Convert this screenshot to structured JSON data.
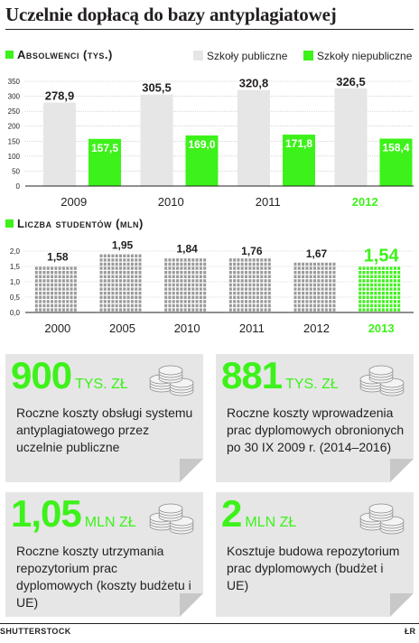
{
  "page": {
    "title": "Uczelnie dopłacą do bazy antyplagiatowej",
    "credit_left": "SHUTTERSTOCK",
    "credit_right": "ŁR"
  },
  "colors": {
    "green": "#3df21a",
    "grey": "#e6e6e6",
    "text": "#231f20"
  },
  "chart_data": [
    {
      "type": "bar",
      "title": "Absolwenci (tys.)",
      "categories": [
        "2009",
        "2010",
        "2011",
        "2012"
      ],
      "highlight_category": "2012",
      "ylim": [
        0,
        350
      ],
      "yticks": [
        0,
        50,
        100,
        150,
        200,
        250,
        300,
        350
      ],
      "grid": true,
      "legend_position": "top-right",
      "series": [
        {
          "name": "Szkoły publiczne",
          "color": "#e6e6e6",
          "values": [
            278.9,
            305.5,
            320.8,
            326.5
          ],
          "labels": [
            "278,9",
            "305,5",
            "320,8",
            "326,5"
          ]
        },
        {
          "name": "Szkoły niepubliczne",
          "color": "#3df21a",
          "values": [
            157.5,
            169.0,
            171.8,
            158.4
          ],
          "labels": [
            "157,5",
            "169,0",
            "171,8",
            "158,4"
          ]
        }
      ]
    },
    {
      "type": "bar",
      "title": "Liczba studentów (mln)",
      "categories": [
        "2000",
        "2005",
        "2010",
        "2011",
        "2012",
        "2013"
      ],
      "highlight_category": "2013",
      "ylim": [
        0,
        2.0
      ],
      "yticks": [
        "0,0",
        "0,5",
        "1,0",
        "1,5",
        "2,0"
      ],
      "grid": true,
      "values": [
        1.58,
        1.95,
        1.84,
        1.76,
        1.67,
        1.54
      ],
      "labels": [
        "1,58",
        "1,95",
        "1,84",
        "1,76",
        "1,67",
        "1,54"
      ]
    }
  ],
  "cards": [
    {
      "number": "900",
      "unit": "TYS. ZŁ",
      "text": "Roczne koszty obsługi systemu antyplagiatowego przez uczelnie publiczne",
      "coin_icon": "coin-stack-icon"
    },
    {
      "number": "881",
      "unit": "TYS. ZŁ",
      "text": "Roczne koszty wprowadzenia prac dyplomowych obronionych po 30 IX 2009 r. (2014–2016)",
      "coin_icon": "coin-stack-icon"
    },
    {
      "number": "1,05",
      "unit": "MLN ZŁ",
      "text": "Roczne koszty utrzymania repozytorium prac dyplomowych (koszty budżetu i UE)",
      "coin_icon": "coin-stack-icon"
    },
    {
      "number": "2",
      "unit": "MLN ZŁ",
      "text": "Kosztuje budowa repozytorium prac dyplomowych (budżet i UE)",
      "coin_icon": "coin-stack-icon"
    }
  ]
}
